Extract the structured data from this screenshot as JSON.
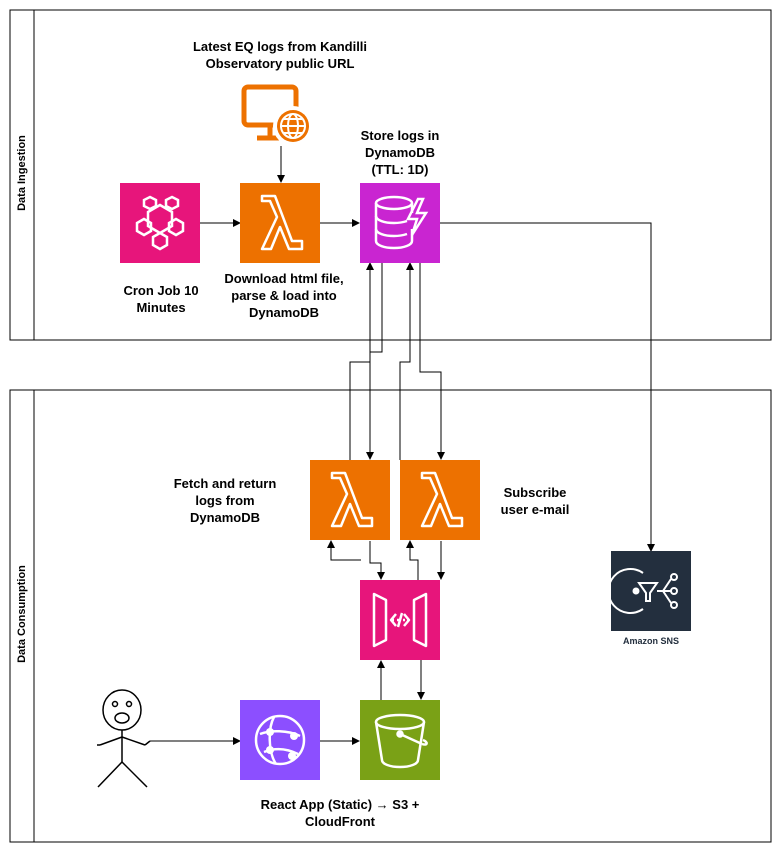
{
  "lanes": {
    "ingestion": {
      "title": "Data Ingestion"
    },
    "consumption": {
      "title": "Data Consumption"
    }
  },
  "labels": {
    "eq_source": "Latest EQ logs from Kandilli Observatory public URL",
    "cron": "Cron Job 10 Minutes",
    "download": "Download html file, parse & load into DynamoDB",
    "store": "Store logs in DynamoDB (TTL: 1D)",
    "fetch": "Fetch and return logs from DynamoDB",
    "subscribe": "Subscribe user e-mail",
    "sns": "Amazon SNS",
    "react_app": "React App (Static) → S3 + CloudFront"
  },
  "icons": {
    "eventbridge": "eventbridge-icon",
    "lambda": "lambda-icon",
    "dynamodb": "dynamodb-icon",
    "client": "client-computer-icon",
    "api_gateway": "api-gateway-icon",
    "cloudfront": "cloudfront-icon",
    "s3": "s3-bucket-icon",
    "sns": "sns-icon",
    "user": "stick-figure-user-icon"
  },
  "colors": {
    "lambda": "#ED7100",
    "eventbridge": "#E7157B",
    "dynamodb": "#C925D1",
    "api_gateway": "#E7157B",
    "cloudfront": "#8C4FFF",
    "s3": "#7AA116",
    "sns_bg": "#232F3E",
    "client": "#ED7100"
  }
}
